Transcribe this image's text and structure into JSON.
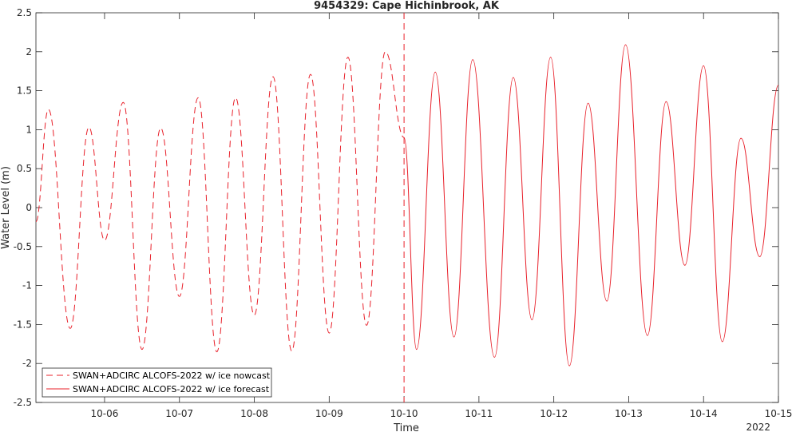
{
  "chart_data": {
    "type": "line",
    "title": "9454329: Cape Hichinbrook, AK",
    "xlabel": "Time",
    "ylabel": "Water Level (m)",
    "year_label": "2022",
    "ylim": [
      -2.5,
      2.5
    ],
    "yticks": [
      -2.5,
      -2,
      -1.5,
      -1,
      -0.5,
      0,
      0.5,
      1,
      1.5,
      2,
      2.5
    ],
    "ytick_labels": [
      "-2.5",
      "-2",
      "-1.5",
      "-1",
      "-0.5",
      "0",
      "0.5",
      "1",
      "1.5",
      "2",
      "2.5"
    ],
    "xlim": [
      "2022-10-05T02:00",
      "2022-10-15T00:00"
    ],
    "xticks": [
      "2022-10-06",
      "2022-10-07",
      "2022-10-08",
      "2022-10-09",
      "2022-10-10",
      "2022-10-11",
      "2022-10-12",
      "2022-10-13",
      "2022-10-14",
      "2022-10-15"
    ],
    "xtick_labels": [
      "10-06",
      "10-07",
      "10-08",
      "10-09",
      "10-10",
      "10-11",
      "10-12",
      "10-13",
      "10-14",
      "10-15"
    ],
    "divider": "2022-10-10T00:00",
    "color": "#e8202a",
    "legend": {
      "position": "bottom-left"
    },
    "grid": false,
    "series": [
      {
        "name": "SWAN+ADCIRC ALCOFS-2022 w/ ice nowcast",
        "style": "dashed",
        "points": [
          [
            "2022-10-05T02:00",
            -0.18
          ],
          [
            "2022-10-05T06:00",
            1.26
          ],
          [
            "2022-10-05T13:00",
            -1.55
          ],
          [
            "2022-10-05T19:00",
            1.03
          ],
          [
            "2022-10-06T00:00",
            -0.42
          ],
          [
            "2022-10-06T06:00",
            1.35
          ],
          [
            "2022-10-06T12:00",
            -1.82
          ],
          [
            "2022-10-06T18:00",
            1.02
          ],
          [
            "2022-10-07T00:00",
            -1.14
          ],
          [
            "2022-10-07T06:00",
            1.41
          ],
          [
            "2022-10-07T12:00",
            -1.85
          ],
          [
            "2022-10-07T18:00",
            1.41
          ],
          [
            "2022-10-08T00:00",
            -1.38
          ],
          [
            "2022-10-08T06:00",
            1.68
          ],
          [
            "2022-10-08T12:00",
            -1.84
          ],
          [
            "2022-10-08T18:00",
            1.71
          ],
          [
            "2022-10-09T00:00",
            -1.61
          ],
          [
            "2022-10-09T06:00",
            1.93
          ],
          [
            "2022-10-09T12:00",
            -1.51
          ],
          [
            "2022-10-09T18:00",
            2.0
          ],
          [
            "2022-10-10T00:00",
            0.9
          ]
        ]
      },
      {
        "name": "SWAN+ADCIRC ALCOFS-2022 w/ ice forecast",
        "style": "solid",
        "points": [
          [
            "2022-10-10T00:00",
            0.9
          ],
          [
            "2022-10-10T04:00",
            -1.82
          ],
          [
            "2022-10-10T10:00",
            1.74
          ],
          [
            "2022-10-10T16:00",
            -1.66
          ],
          [
            "2022-10-10T22:00",
            1.9
          ],
          [
            "2022-10-11T05:00",
            -1.92
          ],
          [
            "2022-10-11T11:00",
            1.67
          ],
          [
            "2022-10-11T17:00",
            -1.44
          ],
          [
            "2022-10-11T23:00",
            1.93
          ],
          [
            "2022-10-12T05:00",
            -2.03
          ],
          [
            "2022-10-12T11:00",
            1.34
          ],
          [
            "2022-10-12T17:00",
            -1.2
          ],
          [
            "2022-10-12T23:00",
            2.09
          ],
          [
            "2022-10-13T06:00",
            -1.64
          ],
          [
            "2022-10-13T12:00",
            1.36
          ],
          [
            "2022-10-13T18:00",
            -0.74
          ],
          [
            "2022-10-14T00:00",
            1.82
          ],
          [
            "2022-10-14T06:00",
            -1.72
          ],
          [
            "2022-10-14T12:00",
            0.89
          ],
          [
            "2022-10-14T18:00",
            -0.63
          ],
          [
            "2022-10-15T00:00",
            1.57
          ]
        ]
      }
    ]
  }
}
